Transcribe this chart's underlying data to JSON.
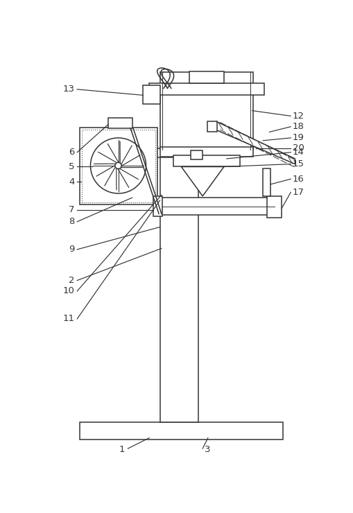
{
  "fig_w": 5.1,
  "fig_h": 7.4,
  "dpi": 100,
  "lc": "#333333",
  "lw": 1.1,
  "label_fs": 9.5
}
